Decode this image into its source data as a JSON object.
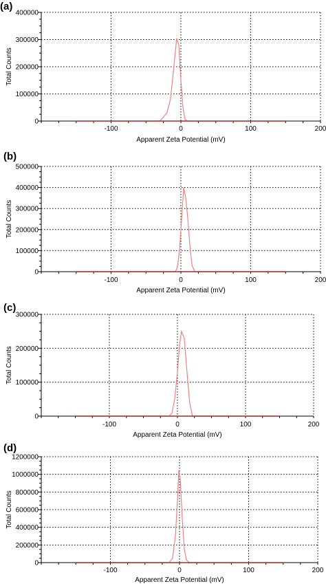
{
  "chart_data": [
    {
      "panel": "(a)",
      "type": "line",
      "xlabel": "Apparent Zeta Potential (mV)",
      "ylabel": "Total Counts",
      "xlim": [
        -200,
        200
      ],
      "ylim": [
        0,
        400000
      ],
      "xticks": [
        -100,
        0,
        100,
        200
      ],
      "yticks": [
        0,
        100000,
        200000,
        300000,
        400000
      ],
      "xtick_labels": [
        "-100",
        "0",
        "100",
        "200"
      ],
      "ytick_labels": [
        "0",
        "100000",
        "200000",
        "300000",
        "400000"
      ],
      "grid": true,
      "color": "#f08080",
      "series": [
        {
          "x": [
            -150,
            -30,
            -20,
            -15,
            -10,
            -6,
            -3,
            0,
            3,
            6,
            10,
            150
          ],
          "y": [
            0,
            0,
            30000,
            80000,
            200000,
            305000,
            280000,
            150000,
            50000,
            5000,
            0,
            0
          ]
        }
      ]
    },
    {
      "panel": "(b)",
      "type": "line",
      "xlabel": "Apparent Zeta Potential (mV)",
      "ylabel": "Total Counts",
      "xlim": [
        -200,
        200
      ],
      "ylim": [
        0,
        500000
      ],
      "xticks": [
        -100,
        0,
        100,
        200
      ],
      "yticks": [
        0,
        100000,
        200000,
        300000,
        400000,
        500000
      ],
      "xtick_labels": [
        "-100",
        "0",
        "100",
        "200"
      ],
      "ytick_labels": [
        "0",
        "100000",
        "200000",
        "300000",
        "400000",
        "500000"
      ],
      "grid": true,
      "color": "#f08080",
      "series": [
        {
          "x": [
            -150,
            -8,
            -5,
            -2,
            1,
            4,
            7,
            10,
            13,
            16,
            20,
            150
          ],
          "y": [
            0,
            0,
            20000,
            100000,
            250000,
            400000,
            350000,
            250000,
            120000,
            30000,
            0,
            0
          ]
        }
      ]
    },
    {
      "panel": "(c)",
      "type": "line",
      "xlabel": "Apparent Zeta Potential (mV)",
      "ylabel": "Total Counts",
      "xlim": [
        -200,
        200
      ],
      "ylim": [
        0,
        300000
      ],
      "xticks": [
        -100,
        0,
        100,
        200
      ],
      "yticks": [
        0,
        100000,
        200000,
        300000
      ],
      "xtick_labels": [
        "-100",
        "0",
        "100",
        "200"
      ],
      "ytick_labels": [
        "0",
        "100000",
        "200000",
        "300000"
      ],
      "grid": true,
      "color": "#f08080",
      "series": [
        {
          "x": [
            -150,
            -12,
            -8,
            -4,
            0,
            3,
            6,
            10,
            14,
            18,
            22,
            150
          ],
          "y": [
            0,
            0,
            10000,
            50000,
            130000,
            210000,
            250000,
            230000,
            130000,
            40000,
            0,
            0
          ]
        }
      ]
    },
    {
      "panel": "(d)",
      "type": "line",
      "xlabel": "Apparent Zeta Potential (mV)",
      "ylabel": "Total Counts",
      "xlim": [
        -200,
        200
      ],
      "ylim": [
        0,
        1200000
      ],
      "xticks": [
        -100,
        0,
        100,
        200
      ],
      "yticks": [
        0,
        200000,
        400000,
        600000,
        800000,
        1000000,
        1200000
      ],
      "xtick_labels": [
        "-100",
        "0",
        "100",
        "200"
      ],
      "ytick_labels": [
        "0",
        "200000",
        "400000",
        "600000",
        "800000",
        "1000000",
        "1200000"
      ],
      "grid": true,
      "color": "#f08080",
      "series": [
        {
          "x": [
            -150,
            -15,
            -10,
            -6,
            -3,
            -1,
            1,
            4,
            7,
            10,
            14,
            150
          ],
          "y": [
            0,
            0,
            50000,
            300000,
            700000,
            1050000,
            950000,
            500000,
            150000,
            30000,
            0,
            0
          ]
        }
      ]
    }
  ]
}
